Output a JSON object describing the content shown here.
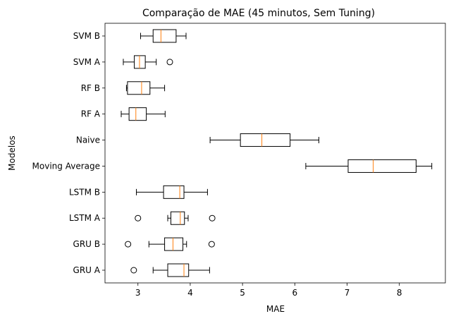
{
  "chart_data": {
    "type": "boxplot",
    "orientation": "horizontal",
    "title": "Comparação de MAE (45 minutos, Sem Tuning)",
    "xlabel": "MAE",
    "ylabel": "Modelos",
    "xlim": [
      2.37,
      8.88
    ],
    "xticks": [
      3,
      4,
      5,
      6,
      7,
      8
    ],
    "grid": false,
    "box_color": "#000000",
    "median_color": "#ff7f0e",
    "categories": [
      "GRU A",
      "GRU B",
      "LSTM A",
      "LSTM B",
      "Moving Average",
      "Naive",
      "RF A",
      "RF B",
      "SVM A",
      "SVM B"
    ],
    "boxes": [
      {
        "label": "GRU A",
        "whislo": 3.29,
        "q1": 3.57,
        "med": 3.88,
        "q3": 3.97,
        "whishi": 4.37,
        "fliers": [
          2.92
        ]
      },
      {
        "label": "GRU B",
        "whislo": 3.21,
        "q1": 3.51,
        "med": 3.67,
        "q3": 3.86,
        "whishi": 3.93,
        "fliers": [
          2.81,
          4.41
        ]
      },
      {
        "label": "LSTM A",
        "whislo": 3.57,
        "q1": 3.63,
        "med": 3.81,
        "q3": 3.89,
        "whishi": 3.96,
        "fliers": [
          3.0,
          4.42
        ]
      },
      {
        "label": "LSTM B",
        "whislo": 2.97,
        "q1": 3.49,
        "med": 3.8,
        "q3": 3.88,
        "whishi": 4.33,
        "fliers": []
      },
      {
        "label": "Moving Average",
        "whislo": 6.21,
        "q1": 7.02,
        "med": 7.5,
        "q3": 8.32,
        "whishi": 8.62,
        "fliers": []
      },
      {
        "label": "Naive",
        "whislo": 4.38,
        "q1": 4.96,
        "med": 5.37,
        "q3": 5.91,
        "whishi": 6.46,
        "fliers": []
      },
      {
        "label": "RF A",
        "whislo": 2.68,
        "q1": 2.83,
        "med": 2.96,
        "q3": 3.16,
        "whishi": 3.52,
        "fliers": []
      },
      {
        "label": "RF B",
        "whislo": 2.78,
        "q1": 2.8,
        "med": 3.07,
        "q3": 3.23,
        "whishi": 3.51,
        "fliers": []
      },
      {
        "label": "SVM A",
        "whislo": 2.72,
        "q1": 2.93,
        "med": 3.03,
        "q3": 3.14,
        "whishi": 3.35,
        "fliers": [
          3.61
        ]
      },
      {
        "label": "SVM B",
        "whislo": 3.05,
        "q1": 3.29,
        "med": 3.44,
        "q3": 3.73,
        "whishi": 3.92,
        "fliers": []
      }
    ]
  }
}
